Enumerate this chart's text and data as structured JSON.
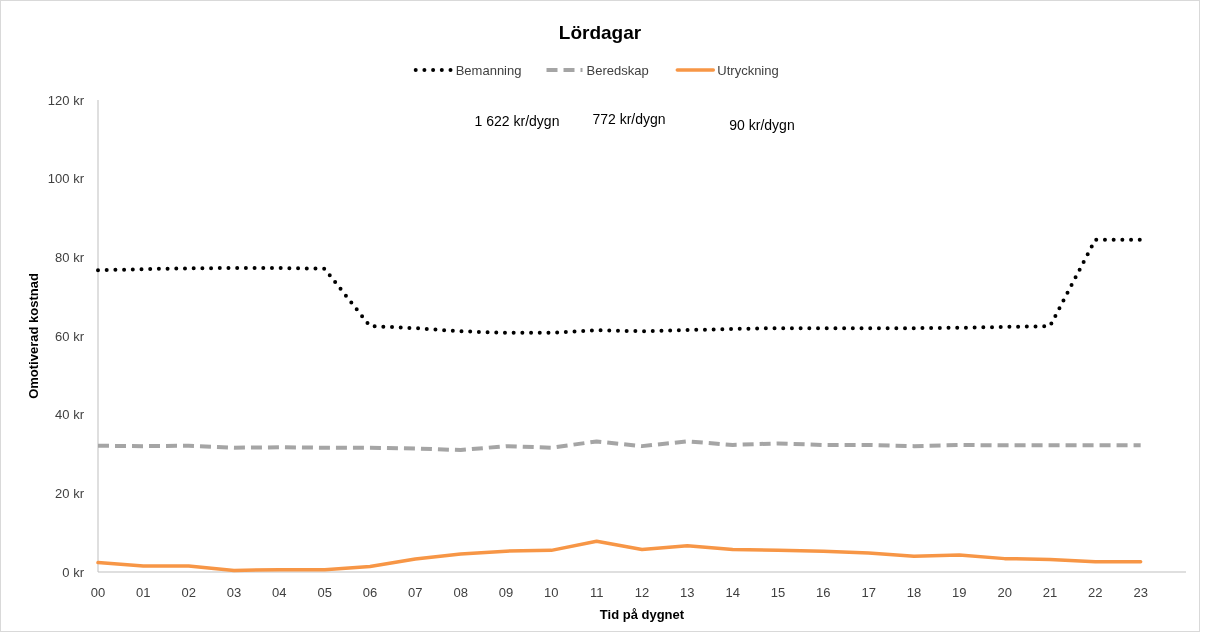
{
  "chart_data": {
    "type": "line",
    "title": "Lördagar",
    "xlabel": "Tid på dygnet",
    "ylabel": "Omotiverad kostnad",
    "categories": [
      "00",
      "01",
      "02",
      "03",
      "04",
      "05",
      "06",
      "07",
      "08",
      "09",
      "10",
      "11",
      "12",
      "13",
      "14",
      "15",
      "16",
      "17",
      "18",
      "19",
      "20",
      "21",
      "22",
      "23"
    ],
    "series": [
      {
        "name": "Bemanning",
        "color": "#000000",
        "line_style": "dotted",
        "values": [
          76.7,
          77,
          77.2,
          77.3,
          77.3,
          77.1,
          62.5,
          62,
          61.2,
          60.8,
          60.8,
          61.5,
          61.2,
          61.5,
          61.8,
          62,
          62,
          62,
          62,
          62.1,
          62.3,
          62.5,
          84.5,
          84.5
        ]
      },
      {
        "name": "Beredskap",
        "color": "#a5a5a5",
        "line_style": "dashed",
        "values": [
          32.1,
          32,
          32.1,
          31.6,
          31.7,
          31.6,
          31.6,
          31.4,
          31,
          32,
          31.6,
          33.2,
          32,
          33.2,
          32.3,
          32.7,
          32.3,
          32.3,
          32,
          32.3,
          32.2,
          32.2,
          32.2,
          32.2
        ]
      },
      {
        "name": "Utryckning",
        "color": "#f79646",
        "line_style": "solid",
        "values": [
          2.4,
          1.5,
          1.5,
          0.4,
          0.6,
          0.6,
          1.4,
          3.3,
          4.6,
          5.3,
          5.5,
          7.8,
          5.7,
          6.7,
          5.7,
          5.5,
          5.3,
          4.8,
          4,
          4.3,
          3.4,
          3.2,
          2.6,
          2.6
        ]
      }
    ],
    "ylim": [
      0,
      120
    ],
    "yticks": [
      {
        "value": 0,
        "label": "0 kr"
      },
      {
        "value": 20,
        "label": "20 kr"
      },
      {
        "value": 40,
        "label": "40 kr"
      },
      {
        "value": 60,
        "label": "60 kr"
      },
      {
        "value": 80,
        "label": "80 kr"
      },
      {
        "value": 100,
        "label": "100 kr"
      },
      {
        "value": 120,
        "label": "120 kr"
      }
    ],
    "legend": "top",
    "annotations": [
      "1 622 kr/dygn",
      "772 kr/dygn",
      "90 kr/dygn"
    ]
  }
}
